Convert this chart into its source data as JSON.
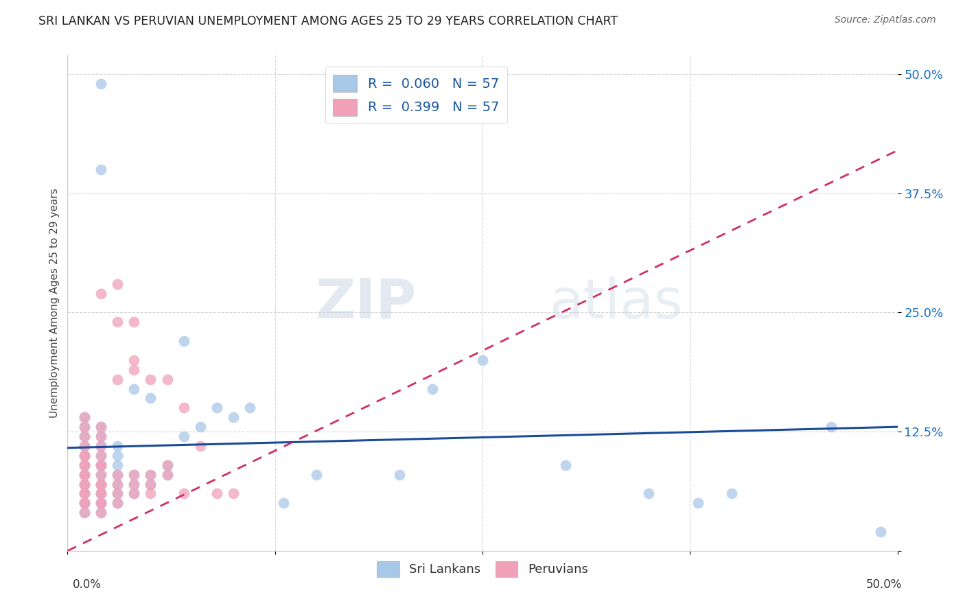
{
  "title": "SRI LANKAN VS PERUVIAN UNEMPLOYMENT AMONG AGES 25 TO 29 YEARS CORRELATION CHART",
  "source": "Source: ZipAtlas.com",
  "ylabel": "Unemployment Among Ages 25 to 29 years",
  "xlim": [
    0.0,
    0.5
  ],
  "ylim": [
    0.0,
    0.52
  ],
  "yticks": [
    0.0,
    0.125,
    0.25,
    0.375,
    0.5
  ],
  "ytick_labels": [
    "",
    "12.5%",
    "25.0%",
    "37.5%",
    "50.0%"
  ],
  "xticks": [
    0.0,
    0.125,
    0.25,
    0.375,
    0.5
  ],
  "legend_R_sri": "0.060",
  "legend_N_sri": "57",
  "legend_R_peru": "0.399",
  "legend_N_peru": "57",
  "sri_color": "#a8c8e8",
  "peru_color": "#f0a0b8",
  "sri_line_color": "#1a4a9a",
  "peru_line_color": "#d03060",
  "watermark_zip": "ZIP",
  "watermark_atlas": "atlas",
  "background_color": "#ffffff",
  "grid_color": "#cccccc",
  "sri_x": [
    0.02,
    0.01,
    0.01,
    0.01,
    0.01,
    0.01,
    0.01,
    0.01,
    0.01,
    0.01,
    0.01,
    0.01,
    0.01,
    0.02,
    0.02,
    0.02,
    0.02,
    0.02,
    0.02,
    0.02,
    0.02,
    0.02,
    0.02,
    0.02,
    0.03,
    0.03,
    0.03,
    0.03,
    0.03,
    0.03,
    0.03,
    0.04,
    0.04,
    0.04,
    0.04,
    0.05,
    0.05,
    0.05,
    0.06,
    0.06,
    0.07,
    0.07,
    0.08,
    0.09,
    0.1,
    0.11,
    0.13,
    0.15,
    0.2,
    0.22,
    0.25,
    0.3,
    0.35,
    0.38,
    0.4,
    0.46,
    0.49
  ],
  "sri_y": [
    0.49,
    0.04,
    0.05,
    0.05,
    0.06,
    0.07,
    0.08,
    0.09,
    0.1,
    0.11,
    0.12,
    0.13,
    0.14,
    0.04,
    0.05,
    0.06,
    0.07,
    0.08,
    0.09,
    0.1,
    0.11,
    0.12,
    0.13,
    0.4,
    0.05,
    0.06,
    0.07,
    0.08,
    0.09,
    0.1,
    0.11,
    0.06,
    0.07,
    0.08,
    0.17,
    0.07,
    0.08,
    0.16,
    0.08,
    0.09,
    0.12,
    0.22,
    0.13,
    0.15,
    0.14,
    0.15,
    0.05,
    0.08,
    0.08,
    0.17,
    0.2,
    0.09,
    0.06,
    0.05,
    0.06,
    0.13,
    0.02
  ],
  "peru_x": [
    0.01,
    0.01,
    0.01,
    0.01,
    0.01,
    0.01,
    0.01,
    0.01,
    0.01,
    0.01,
    0.01,
    0.01,
    0.01,
    0.01,
    0.01,
    0.01,
    0.01,
    0.02,
    0.02,
    0.02,
    0.02,
    0.02,
    0.02,
    0.02,
    0.02,
    0.02,
    0.02,
    0.02,
    0.02,
    0.02,
    0.02,
    0.02,
    0.03,
    0.03,
    0.03,
    0.03,
    0.03,
    0.03,
    0.03,
    0.04,
    0.04,
    0.04,
    0.04,
    0.04,
    0.04,
    0.05,
    0.05,
    0.05,
    0.05,
    0.06,
    0.06,
    0.06,
    0.07,
    0.07,
    0.08,
    0.09,
    0.1
  ],
  "peru_y": [
    0.04,
    0.05,
    0.05,
    0.06,
    0.06,
    0.07,
    0.07,
    0.08,
    0.08,
    0.09,
    0.09,
    0.1,
    0.1,
    0.11,
    0.12,
    0.13,
    0.14,
    0.04,
    0.05,
    0.05,
    0.06,
    0.06,
    0.07,
    0.07,
    0.08,
    0.09,
    0.09,
    0.1,
    0.11,
    0.12,
    0.13,
    0.27,
    0.05,
    0.06,
    0.07,
    0.08,
    0.18,
    0.24,
    0.28,
    0.06,
    0.07,
    0.08,
    0.19,
    0.24,
    0.2,
    0.06,
    0.07,
    0.08,
    0.18,
    0.08,
    0.09,
    0.18,
    0.06,
    0.15,
    0.11,
    0.06,
    0.06
  ]
}
